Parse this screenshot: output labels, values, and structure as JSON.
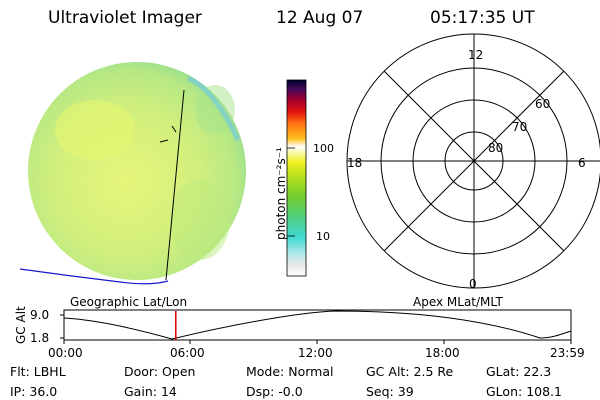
{
  "header": {
    "instrument": "Ultraviolet Imager",
    "date": "12 Aug 07",
    "time": "05:17:35 UT"
  },
  "colorbar": {
    "unit_label": "photon cm⁻²s⁻¹",
    "tick_100": "100",
    "tick_10": "10"
  },
  "polar_plot": {
    "mlt_labels": {
      "top": "12",
      "left": "18",
      "right": "6",
      "bottom": "0"
    },
    "lat_labels": [
      "60",
      "70",
      "80"
    ]
  },
  "timeline": {
    "left_label": "Geographic Lat/Lon",
    "right_label": "Apex MLat/MLT",
    "axis_title": "GC Alt",
    "y_ticks": [
      "9.0",
      "1.8"
    ],
    "x_ticks": [
      "00:00",
      "06:00",
      "12:00",
      "18:00",
      "23:59"
    ],
    "current_time_fraction": 0.2205
  },
  "footer": {
    "filter_label": "Flt:",
    "filter_value": "LBHL",
    "ip_label": "IP:",
    "ip_value": "36.0",
    "door_label": "Door:",
    "door_value": "Open",
    "gain_label": "Gain:",
    "gain_value": "14",
    "mode_label": "Mode:",
    "mode_value": "Normal",
    "dsp_label": "Dsp:",
    "dsp_value": "-0.0",
    "gcalt_label": "GC Alt:",
    "gcalt_value": "2.5 Re",
    "seq_label": "Seq:",
    "seq_value": "39",
    "glat_label": "GLat:",
    "glat_value": "22.3",
    "glon_label": "GLon:",
    "glon_value": "108.1"
  },
  "colors": {
    "line_red": "#e00000",
    "coast_blue": "#1a1acc",
    "disk_main": "#d6f07a",
    "disk_edge": "#9fe08a"
  }
}
